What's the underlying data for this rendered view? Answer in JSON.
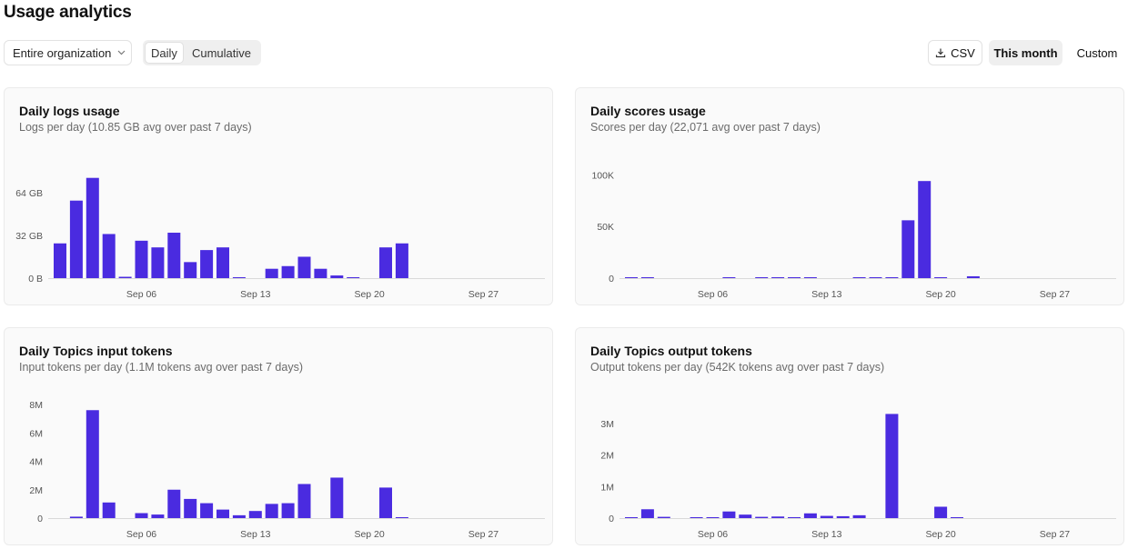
{
  "header": {
    "title": "Usage analytics",
    "org_select": "Entire organization",
    "view_modes": [
      "Daily",
      "Cumulative"
    ],
    "csv_label": "CSV",
    "range_active": "This month",
    "range_custom": "Custom"
  },
  "colors": {
    "bar": "#4a2be0",
    "axis": "#d9d9d9"
  },
  "chart_data": [
    {
      "type": "bar",
      "title": "Daily logs usage",
      "subtitle": "Logs per day (10.85 GB avg over past 7 days)",
      "x": [
        "Sep 01",
        "Sep 02",
        "Sep 03",
        "Sep 04",
        "Sep 05",
        "Sep 06",
        "Sep 07",
        "Sep 08",
        "Sep 09",
        "Sep 10",
        "Sep 11",
        "Sep 12",
        "Sep 13",
        "Sep 14",
        "Sep 15",
        "Sep 16",
        "Sep 17",
        "Sep 18",
        "Sep 19",
        "Sep 20",
        "Sep 21",
        "Sep 22",
        "Sep 23",
        "Sep 24",
        "Sep 25",
        "Sep 26",
        "Sep 27",
        "Sep 28",
        "Sep 29",
        "Sep 30"
      ],
      "values": [
        26,
        58,
        75,
        33,
        1,
        28,
        23,
        34,
        12,
        21,
        23,
        0.3,
        0,
        7,
        9,
        16,
        7,
        2,
        0.4,
        0,
        23,
        26,
        0,
        0,
        0,
        0,
        0,
        0,
        0,
        0
      ],
      "unit": "GB",
      "yticks": [
        0,
        32,
        64
      ],
      "ytick_labels": [
        "0 B",
        "32 GB",
        "64 GB"
      ],
      "ylim": [
        0,
        85
      ],
      "xtick_labels": [
        "Sep 06",
        "Sep 13",
        "Sep 20",
        "Sep 27"
      ]
    },
    {
      "type": "bar",
      "title": "Daily scores usage",
      "subtitle": "Scores per day (22,071 avg over past 7 days)",
      "x": [
        "Sep 01",
        "Sep 02",
        "Sep 03",
        "Sep 04",
        "Sep 05",
        "Sep 06",
        "Sep 07",
        "Sep 08",
        "Sep 09",
        "Sep 10",
        "Sep 11",
        "Sep 12",
        "Sep 13",
        "Sep 14",
        "Sep 15",
        "Sep 16",
        "Sep 17",
        "Sep 18",
        "Sep 19",
        "Sep 20",
        "Sep 21",
        "Sep 22",
        "Sep 23",
        "Sep 24",
        "Sep 25",
        "Sep 26",
        "Sep 27",
        "Sep 28",
        "Sep 29",
        "Sep 30"
      ],
      "values": [
        300,
        300,
        0,
        0,
        0,
        0,
        300,
        0,
        300,
        300,
        600,
        600,
        0,
        0,
        600,
        300,
        300,
        56000,
        94000,
        600,
        0,
        1800,
        0,
        0,
        0,
        0,
        0,
        0,
        0,
        0
      ],
      "unit": "",
      "yticks": [
        0,
        50000,
        100000
      ],
      "ytick_labels": [
        "0",
        "50K",
        "100K"
      ],
      "ylim": [
        0,
        110000
      ],
      "xtick_labels": [
        "Sep 06",
        "Sep 13",
        "Sep 20",
        "Sep 27"
      ]
    },
    {
      "type": "bar",
      "title": "Daily Topics input tokens",
      "subtitle": "Input tokens per day (1.1M tokens avg over past 7 days)",
      "x": [
        "Sep 01",
        "Sep 02",
        "Sep 03",
        "Sep 04",
        "Sep 05",
        "Sep 06",
        "Sep 07",
        "Sep 08",
        "Sep 09",
        "Sep 10",
        "Sep 11",
        "Sep 12",
        "Sep 13",
        "Sep 14",
        "Sep 15",
        "Sep 16",
        "Sep 17",
        "Sep 18",
        "Sep 19",
        "Sep 20",
        "Sep 21",
        "Sep 22",
        "Sep 23",
        "Sep 24",
        "Sep 25",
        "Sep 26",
        "Sep 27",
        "Sep 28",
        "Sep 29",
        "Sep 30"
      ],
      "values": [
        0,
        0.1,
        7.6,
        1.1,
        0,
        0.35,
        0.25,
        2.0,
        1.35,
        1.05,
        0.6,
        0.2,
        0.5,
        1.0,
        1.05,
        2.4,
        0,
        2.85,
        0,
        0,
        2.15,
        0.05,
        0,
        0,
        0,
        0,
        0,
        0,
        0,
        0
      ],
      "unit": "M",
      "yticks": [
        0,
        2,
        4,
        6,
        8
      ],
      "ytick_labels": [
        "0",
        "2M",
        "4M",
        "6M",
        "8M"
      ],
      "ylim": [
        0,
        8
      ],
      "xtick_labels": [
        "Sep 06",
        "Sep 13",
        "Sep 20",
        "Sep 27"
      ]
    },
    {
      "type": "bar",
      "title": "Daily Topics output tokens",
      "subtitle": "Output tokens per day (542K tokens avg over past 7 days)",
      "x": [
        "Sep 01",
        "Sep 02",
        "Sep 03",
        "Sep 04",
        "Sep 05",
        "Sep 06",
        "Sep 07",
        "Sep 08",
        "Sep 09",
        "Sep 10",
        "Sep 11",
        "Sep 12",
        "Sep 13",
        "Sep 14",
        "Sep 15",
        "Sep 16",
        "Sep 17",
        "Sep 18",
        "Sep 19",
        "Sep 20",
        "Sep 21",
        "Sep 22",
        "Sep 23",
        "Sep 24",
        "Sep 25",
        "Sep 26",
        "Sep 27",
        "Sep 28",
        "Sep 29",
        "Sep 30"
      ],
      "values": [
        0.01,
        0.28,
        0.04,
        0,
        0.01,
        0.01,
        0.21,
        0.11,
        0.04,
        0.05,
        0.03,
        0.15,
        0.07,
        0.06,
        0.09,
        0,
        3.3,
        0,
        0,
        0.36,
        0.02,
        0,
        0,
        0,
        0,
        0,
        0,
        0,
        0,
        0
      ],
      "unit": "M",
      "yticks": [
        0,
        1,
        2,
        3
      ],
      "ytick_labels": [
        "0",
        "1M",
        "2M",
        "3M"
      ],
      "ylim": [
        0,
        3.6
      ],
      "xtick_labels": [
        "Sep 06",
        "Sep 13",
        "Sep 20",
        "Sep 27"
      ]
    }
  ]
}
